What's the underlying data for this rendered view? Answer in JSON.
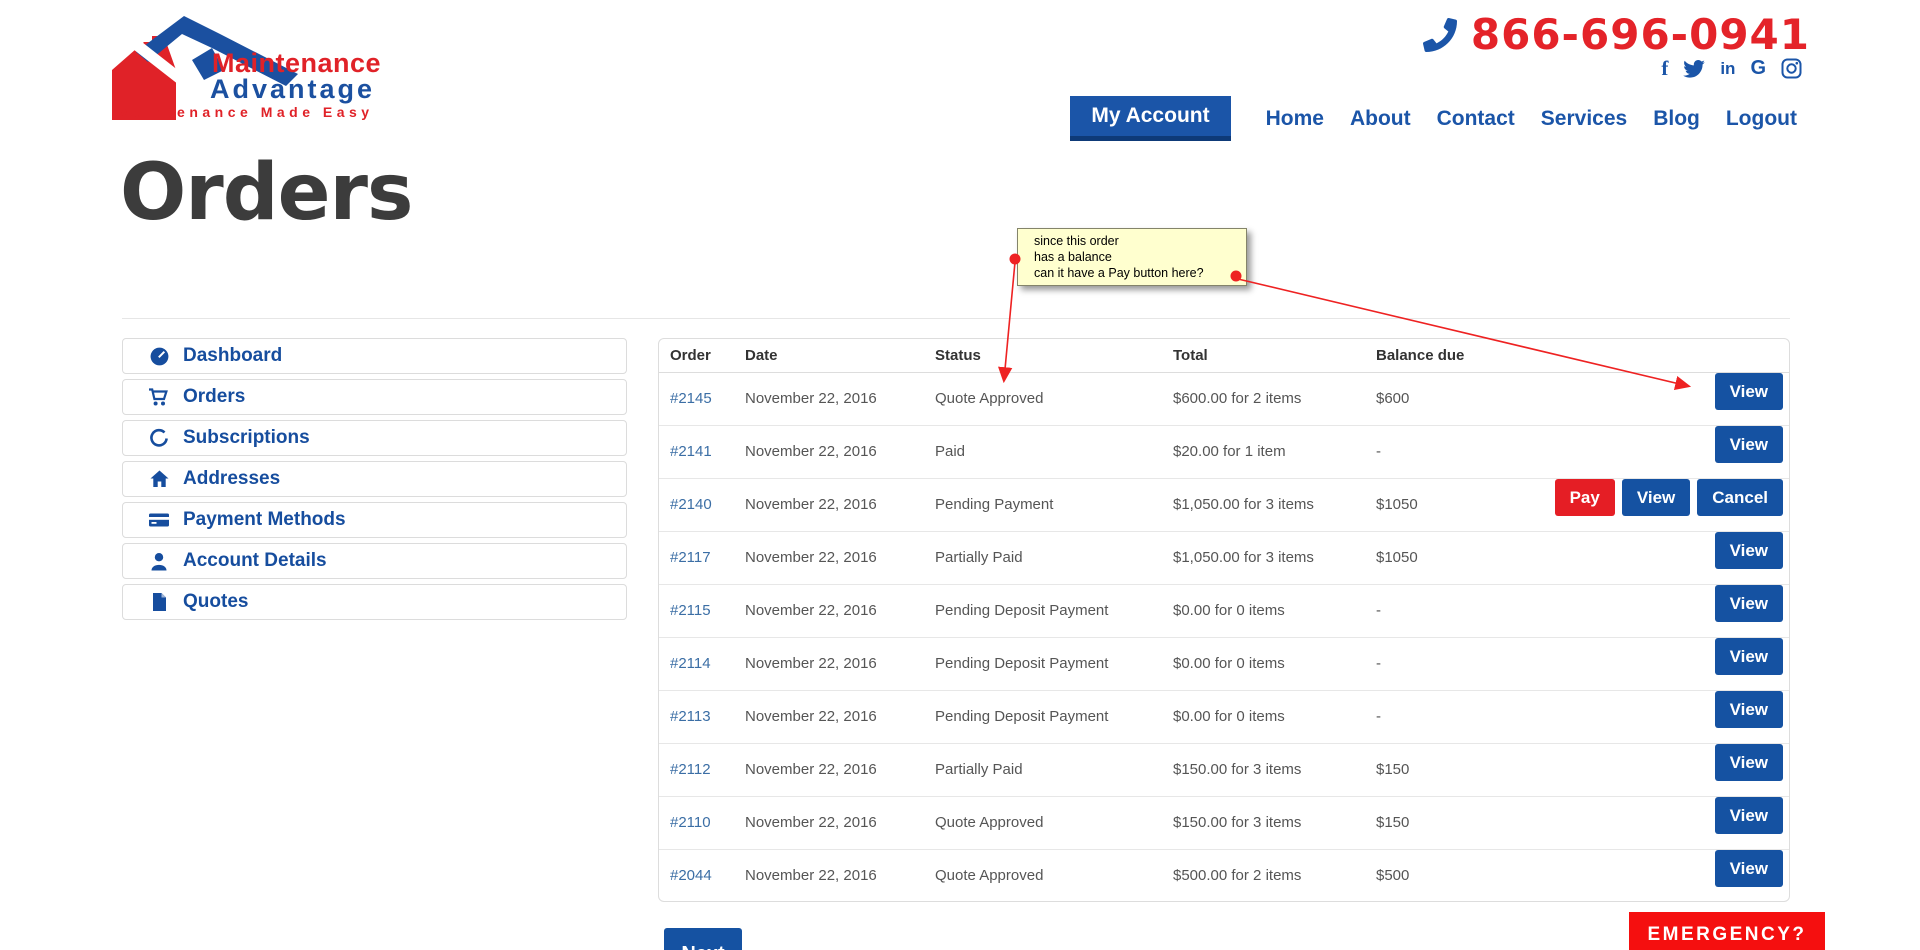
{
  "logo": {
    "line1": "Maintenance",
    "line2": "Advantage",
    "tagline": "Maintenance Made Easy"
  },
  "header": {
    "phone": "866-696-0941",
    "phone_icon": "phone-icon",
    "social_icons": [
      "facebook-icon",
      "twitter-icon",
      "linkedin-icon",
      "google-icon",
      "instagram-icon"
    ],
    "nav": [
      {
        "label": "My Account",
        "active": true
      },
      {
        "label": "Home",
        "active": false
      },
      {
        "label": "About",
        "active": false
      },
      {
        "label": "Contact",
        "active": false
      },
      {
        "label": "Services",
        "active": false
      },
      {
        "label": "Blog",
        "active": false
      },
      {
        "label": "Logout",
        "active": false
      }
    ]
  },
  "page": {
    "title": "Orders"
  },
  "sidebar": {
    "items": [
      {
        "icon": "dashboard-icon",
        "label": "Dashboard"
      },
      {
        "icon": "cart-icon",
        "label": "Orders"
      },
      {
        "icon": "refresh-icon",
        "label": "Subscriptions"
      },
      {
        "icon": "home-icon",
        "label": "Addresses"
      },
      {
        "icon": "credit-card-icon",
        "label": "Payment Methods"
      },
      {
        "icon": "user-icon",
        "label": "Account Details"
      },
      {
        "icon": "file-icon",
        "label": "Quotes"
      }
    ]
  },
  "annotation": {
    "lines": [
      "since this order",
      "has a balance",
      "can it have a Pay button here?"
    ]
  },
  "table": {
    "columns": [
      "Order",
      "Date",
      "Status",
      "Total",
      "Balance due"
    ],
    "rows": [
      {
        "order": "#2145",
        "date": "November 22, 2016",
        "status": "Quote Approved",
        "total": "$600.00 for 2 items",
        "balance": "$600",
        "actions": [
          "View"
        ]
      },
      {
        "order": "#2141",
        "date": "November 22, 2016",
        "status": "Paid",
        "total": "$20.00 for 1 item",
        "balance": "-",
        "actions": [
          "View"
        ]
      },
      {
        "order": "#2140",
        "date": "November 22, 2016",
        "status": "Pending Payment",
        "total": "$1,050.00 for 3 items",
        "balance": "$1050",
        "actions": [
          "Pay",
          "View",
          "Cancel"
        ]
      },
      {
        "order": "#2117",
        "date": "November 22, 2016",
        "status": "Partially Paid",
        "total": "$1,050.00 for 3 items",
        "balance": "$1050",
        "actions": [
          "View"
        ]
      },
      {
        "order": "#2115",
        "date": "November 22, 2016",
        "status": "Pending Deposit Payment",
        "total": "$0.00 for 0 items",
        "balance": "-",
        "actions": [
          "View"
        ]
      },
      {
        "order": "#2114",
        "date": "November 22, 2016",
        "status": "Pending Deposit Payment",
        "total": "$0.00 for 0 items",
        "balance": "-",
        "actions": [
          "View"
        ]
      },
      {
        "order": "#2113",
        "date": "November 22, 2016",
        "status": "Pending Deposit Payment",
        "total": "$0.00 for 0 items",
        "balance": "-",
        "actions": [
          "View"
        ]
      },
      {
        "order": "#2112",
        "date": "November 22, 2016",
        "status": "Partially Paid",
        "total": "$150.00 for 3 items",
        "balance": "$150",
        "actions": [
          "View"
        ]
      },
      {
        "order": "#2110",
        "date": "November 22, 2016",
        "status": "Quote Approved",
        "total": "$150.00 for 3 items",
        "balance": "$150",
        "actions": [
          "View"
        ]
      },
      {
        "order": "#2044",
        "date": "November 22, 2016",
        "status": "Quote Approved",
        "total": "$500.00 for 2 items",
        "balance": "$500",
        "actions": [
          "View"
        ]
      }
    ]
  },
  "pagination": {
    "next_label": "Next"
  },
  "emergency": {
    "label": "EMERGENCY?"
  },
  "colors": {
    "primary_blue": "#1552a2",
    "nav_blue": "#1b55a8",
    "link_blue": "#3b6ea5",
    "red": "#e51e25",
    "emergency_red": "#f50f0f",
    "note_bg": "#ffffcf",
    "title_gray": "#3c3c3c"
  }
}
